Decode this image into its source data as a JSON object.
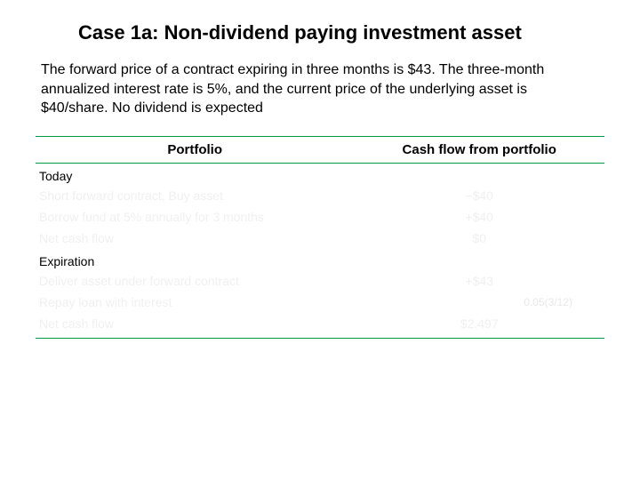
{
  "title": "Case 1a: Non-dividend paying investment asset",
  "body_text": "The forward price of a contract expiring in three months is $43. The three-month annualized interest rate is 5%, and the current price of the underlying asset is $40/share. No dividend is expected",
  "table": {
    "headers": {
      "portfolio": "Portfolio",
      "cashflow": "Cash flow from portfolio"
    },
    "today_label": "Today",
    "today_rows": [
      {
        "portfolio": "Short forward contract, Buy asset",
        "cashflow": "−$40"
      },
      {
        "portfolio": "Borrow fund at 5% annually for 3 months",
        "cashflow": "+$40"
      },
      {
        "portfolio": "Net cash flow",
        "cashflow": "$0"
      }
    ],
    "expiration_label": "Expiration",
    "expiration_rows": [
      {
        "portfolio": "Deliver asset under forward contract",
        "cashflow": "+$43"
      },
      {
        "portfolio": "Repay loan with interest",
        "cashflow": "−$40e^(0.05(3/12))",
        "cashflow_alt": "0.05(3/12)"
      },
      {
        "portfolio": "Net cash flow",
        "cashflow": "$2.497"
      }
    ]
  },
  "colors": {
    "rule": "#009944",
    "text": "#000000",
    "faint": "#f0f0f0",
    "background": "#ffffff"
  }
}
